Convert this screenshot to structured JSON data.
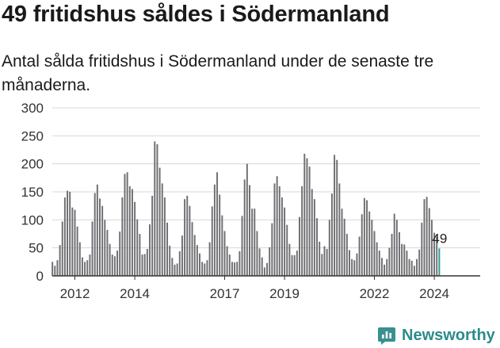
{
  "title": "49 fritidshus såldes i Södermanland",
  "subtitle": "Antal sålda fritidshus i Södermanland under de senaste tre månaderna.",
  "brand": {
    "name": "Newsworthy",
    "icon": "newsworthy-logo-icon",
    "color": "#3a8f8f"
  },
  "colors": {
    "bar": "#6f6e72",
    "highlight": "#2a9d96",
    "grid": "#d7d7d7"
  },
  "chart_data": {
    "type": "bar",
    "ylim": [
      0,
      300
    ],
    "yticks": [
      0,
      50,
      100,
      150,
      200,
      250,
      300
    ],
    "xtick_labels": [
      "2012",
      "2014",
      "2017",
      "2019",
      "2022",
      "2024"
    ],
    "xtick_positions": [
      2012.5,
      2014.5,
      2017.5,
      2019.5,
      2022.5,
      2024.5
    ],
    "x_start": 2011.75,
    "x_step": 0.08333,
    "grid": true,
    "legend": "none",
    "last_value_label": "49",
    "values": [
      25,
      18,
      28,
      55,
      97,
      140,
      152,
      150,
      122,
      118,
      88,
      60,
      33,
      25,
      28,
      38,
      97,
      148,
      163,
      138,
      125,
      100,
      82,
      57,
      38,
      35,
      45,
      79,
      140,
      182,
      185,
      160,
      155,
      132,
      101,
      75,
      38,
      39,
      48,
      92,
      143,
      240,
      235,
      193,
      165,
      140,
      95,
      54,
      32,
      20,
      22,
      44,
      72,
      137,
      143,
      125,
      96,
      73,
      55,
      40,
      25,
      22,
      28,
      60,
      124,
      163,
      185,
      145,
      108,
      80,
      53,
      38,
      25,
      24,
      25,
      44,
      107,
      172,
      200,
      162,
      120,
      120,
      80,
      49,
      33,
      15,
      23,
      51,
      94,
      165,
      178,
      160,
      140,
      122,
      91,
      57,
      37,
      37,
      45,
      105,
      160,
      218,
      210,
      195,
      155,
      137,
      103,
      61,
      39,
      53,
      48,
      100,
      147,
      216,
      207,
      165,
      120,
      102,
      75,
      46,
      30,
      28,
      40,
      70,
      110,
      139,
      135,
      115,
      100,
      80,
      60,
      45,
      32,
      20,
      30,
      50,
      75,
      111,
      100,
      78,
      57,
      56,
      45,
      30,
      27,
      18,
      30,
      47,
      95,
      137,
      141,
      121,
      100,
      77,
      70,
      49
    ]
  }
}
